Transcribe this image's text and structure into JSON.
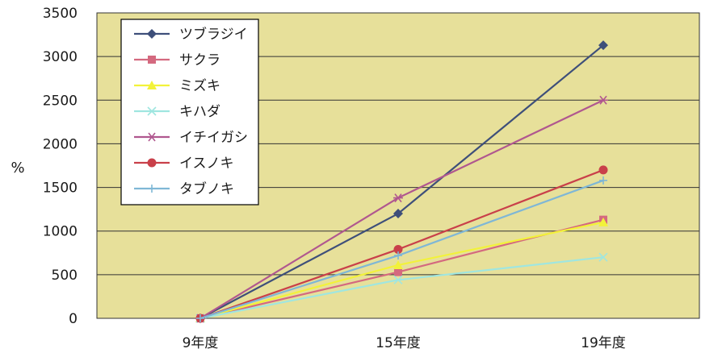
{
  "chart_data": {
    "type": "line",
    "ylabel": "%",
    "categories": [
      "9年度",
      "15年度",
      "19年度"
    ],
    "ylim": [
      0,
      3500
    ],
    "yticks": [
      0,
      500,
      1000,
      1500,
      2000,
      2500,
      3000,
      3500
    ],
    "grid": true,
    "legend_position": "top-left",
    "series": [
      {
        "name": "ツブラジイ",
        "values": [
          0,
          1200,
          3130
        ],
        "color": "#3e4f7a",
        "marker": "diamond"
      },
      {
        "name": "サクラ",
        "values": [
          0,
          530,
          1130
        ],
        "color": "#d4697f",
        "marker": "square"
      },
      {
        "name": "ミズキ",
        "values": [
          0,
          610,
          1100
        ],
        "color": "#f2f23a",
        "marker": "triangle"
      },
      {
        "name": "キハダ",
        "values": [
          0,
          440,
          700
        ],
        "color": "#9fe6e0",
        "marker": "x"
      },
      {
        "name": "イチイガシ",
        "values": [
          0,
          1380,
          2500
        ],
        "color": "#b0578f",
        "marker": "star"
      },
      {
        "name": "イスノキ",
        "values": [
          0,
          790,
          1700
        ],
        "color": "#c9404a",
        "marker": "circle"
      },
      {
        "name": "タブノキ",
        "values": [
          0,
          720,
          1580
        ],
        "color": "#7fb7d6",
        "marker": "plus"
      }
    ]
  },
  "colors": {
    "plot_background": "#e7e09a",
    "gridline": "#333333",
    "legend_background": "#ffffff"
  }
}
